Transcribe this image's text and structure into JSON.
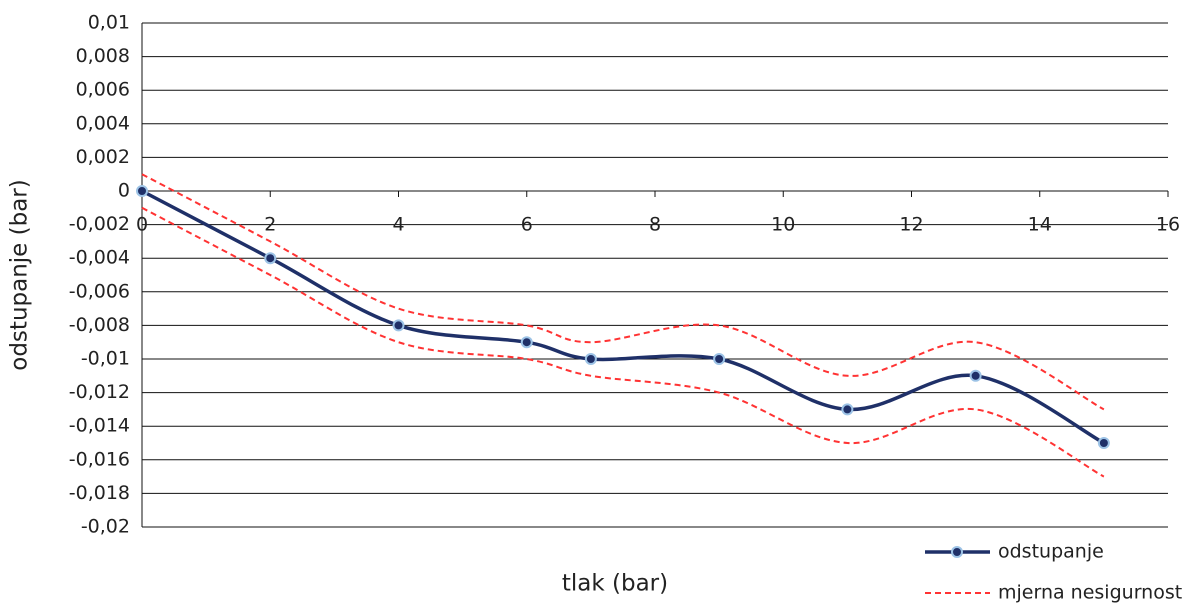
{
  "chart_data": {
    "type": "line",
    "x_label": "tlak (bar)",
    "y_label": "odstupanje (bar)",
    "x": [
      0,
      2,
      4,
      6,
      7,
      9,
      11,
      13,
      15
    ],
    "series": [
      {
        "name": "odstupanje",
        "color": "#1f3068",
        "marker_color": "#9dc3e6",
        "values": [
          0,
          -0.004,
          -0.008,
          -0.009,
          -0.01,
          -0.01,
          -0.013,
          -0.011,
          -0.015
        ]
      }
    ],
    "uncertainty": {
      "name": "mjerna nesigurnost",
      "color": "#ff3333",
      "upper": [
        0.001,
        -0.003,
        -0.007,
        -0.008,
        -0.009,
        -0.008,
        -0.011,
        -0.009,
        -0.013
      ],
      "lower": [
        -0.001,
        -0.005,
        -0.009,
        -0.01,
        -0.011,
        -0.012,
        -0.015,
        -0.013,
        -0.017
      ]
    },
    "xlim": [
      0,
      16
    ],
    "xticks": [
      0,
      2,
      4,
      6,
      8,
      10,
      12,
      14,
      16
    ],
    "ylim": [
      -0.02,
      0.01
    ],
    "yticks": [
      {
        "value": 0.01,
        "label": "0,01"
      },
      {
        "value": 0.008,
        "label": "0,008"
      },
      {
        "value": 0.006,
        "label": "0,006"
      },
      {
        "value": 0.004,
        "label": "0,004"
      },
      {
        "value": 0.002,
        "label": "0,002"
      },
      0,
      {
        "value": -0.002,
        "label": "-0,002"
      },
      {
        "value": -0.004,
        "label": "-0,004"
      },
      {
        "value": -0.006,
        "label": "-0,006"
      },
      {
        "value": -0.008,
        "label": "-0,008"
      },
      {
        "value": -0.01,
        "label": "-0,01"
      },
      {
        "value": -0.012,
        "label": "-0,012"
      },
      {
        "value": -0.014,
        "label": "-0,014"
      },
      {
        "value": -0.016,
        "label": "-0,016"
      },
      {
        "value": -0.018,
        "label": "-0,018"
      },
      {
        "value": -0.02,
        "label": "-0,02"
      }
    ],
    "grid": true
  }
}
